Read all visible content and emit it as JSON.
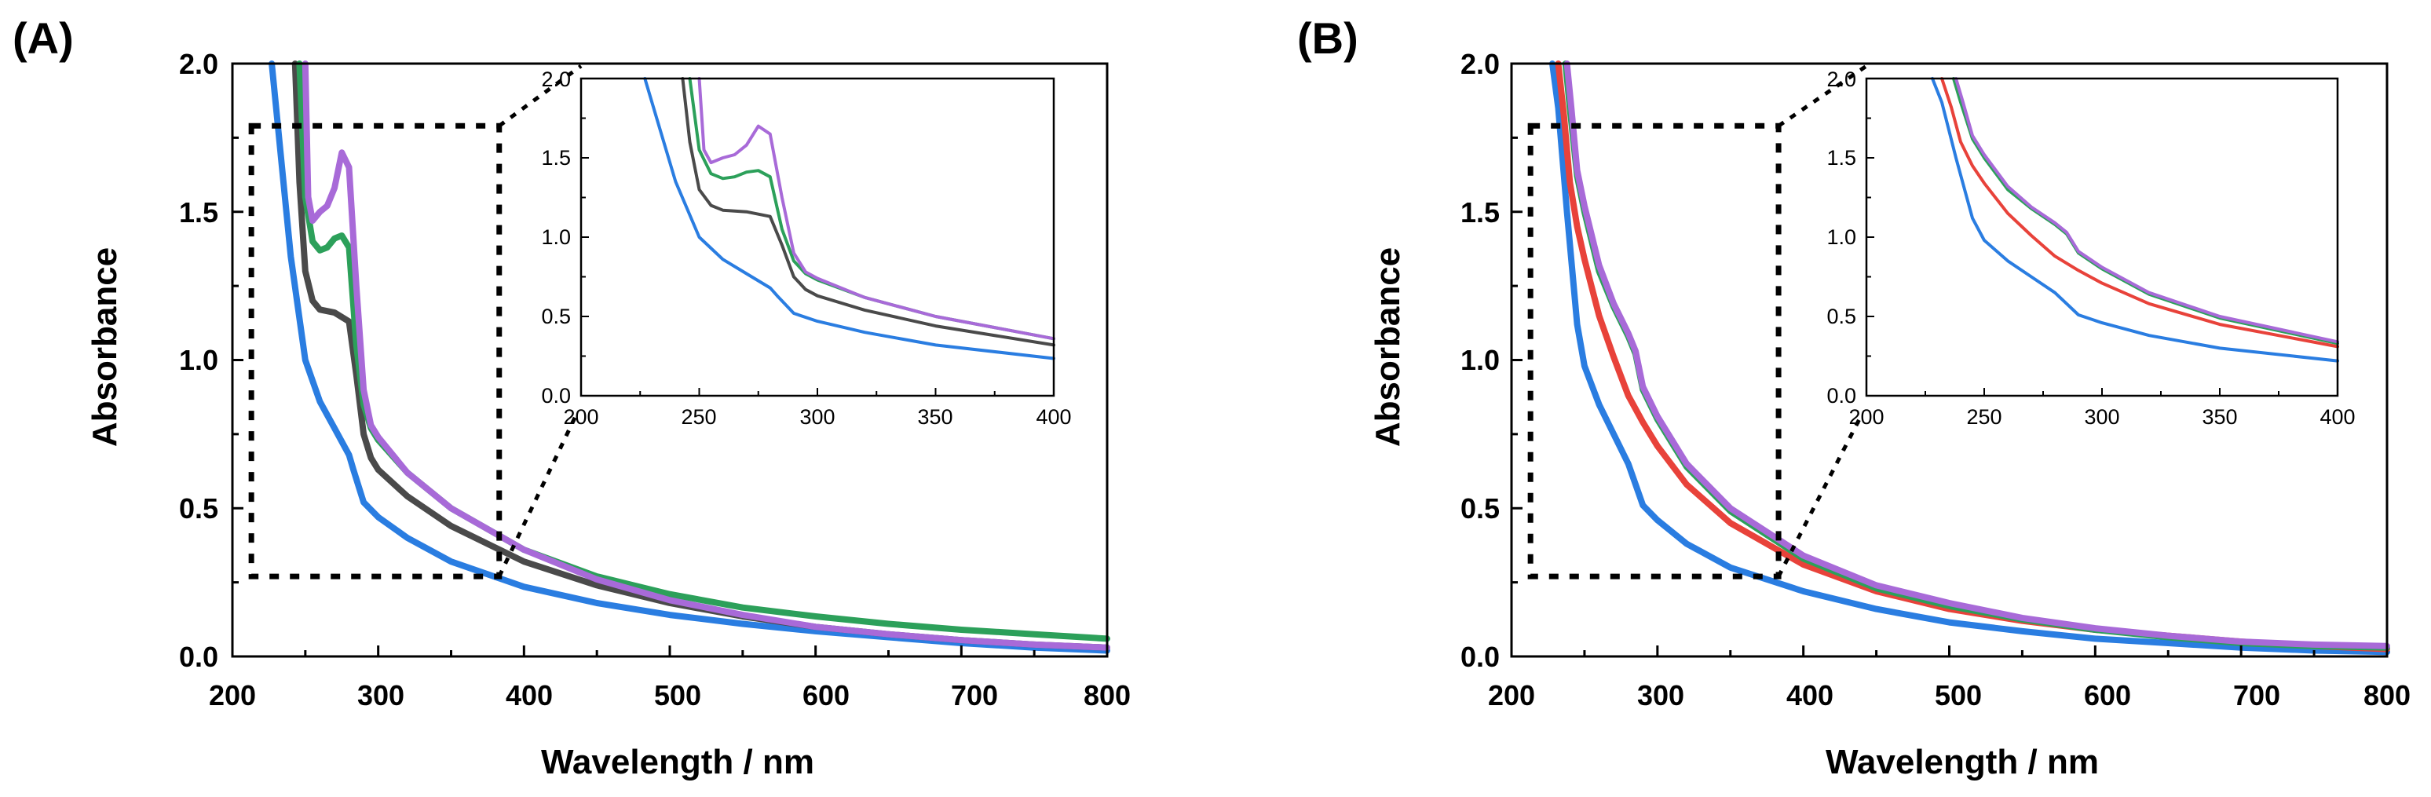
{
  "panels": [
    {
      "label": "(A)",
      "xlabel": "Wavelength / nm",
      "ylabel": "Absorbance",
      "xlim": [
        200,
        800
      ],
      "ylim": [
        0.0,
        2.0
      ],
      "xticks": [
        "200",
        "300",
        "400",
        "500",
        "600",
        "700",
        "800"
      ],
      "yticks": [
        "0.0",
        "0.5",
        "1.0",
        "1.5",
        "2.0"
      ],
      "zoom_box": {
        "x": [
          213,
          383
        ],
        "y": [
          0.27,
          1.79
        ]
      },
      "inset": {
        "xlim": [
          200,
          400
        ],
        "ylim": [
          0.0,
          2.0
        ],
        "xticks": [
          "200",
          "250",
          "300",
          "350",
          "400"
        ],
        "yticks": [
          "0.0",
          "0.5",
          "1.0",
          "1.5",
          "2.0"
        ]
      }
    },
    {
      "label": "(B)",
      "xlabel": "Wavelength / nm",
      "ylabel": "Absorbance",
      "xlim": [
        200,
        800
      ],
      "ylim": [
        0.0,
        2.0
      ],
      "xticks": [
        "200",
        "300",
        "400",
        "500",
        "600",
        "700",
        "800"
      ],
      "yticks": [
        "0.0",
        "0.5",
        "1.0",
        "1.5",
        "2.0"
      ],
      "zoom_box": {
        "x": [
          213,
          383
        ],
        "y": [
          0.27,
          1.79
        ]
      },
      "inset": {
        "xlim": [
          200,
          400
        ],
        "ylim": [
          0.0,
          2.0
        ],
        "xticks": [
          "200",
          "250",
          "300",
          "350",
          "400"
        ],
        "yticks": [
          "0.0",
          "0.5",
          "1.0",
          "1.5",
          "2.0"
        ]
      }
    }
  ],
  "chart_data": [
    {
      "type": "line",
      "panel": "(A)",
      "xlabel": "Wavelength / nm",
      "ylabel": "Absorbance",
      "xlim": [
        200,
        800
      ],
      "ylim": [
        0.0,
        2.0
      ],
      "series": [
        {
          "name": "blue",
          "color": "#2a7de1",
          "x": [
            227,
            232,
            240,
            250,
            260,
            270,
            280,
            283,
            290,
            300,
            320,
            350,
            400,
            450,
            500,
            550,
            600,
            650,
            700,
            750,
            800
          ],
          "y": [
            2.0,
            1.75,
            1.35,
            1.0,
            0.86,
            0.77,
            0.68,
            0.63,
            0.52,
            0.47,
            0.4,
            0.32,
            0.235,
            0.18,
            0.14,
            0.11,
            0.085,
            0.065,
            0.045,
            0.03,
            0.02
          ]
        },
        {
          "name": "gray",
          "color": "#4a4a4a",
          "x": [
            243,
            246,
            250,
            255,
            260,
            270,
            280,
            285,
            290,
            295,
            300,
            320,
            350,
            400,
            450,
            500,
            550,
            600,
            650,
            700,
            750,
            800
          ],
          "y": [
            2.0,
            1.6,
            1.3,
            1.2,
            1.17,
            1.16,
            1.13,
            0.95,
            0.75,
            0.67,
            0.63,
            0.54,
            0.44,
            0.32,
            0.24,
            0.18,
            0.135,
            0.1,
            0.075,
            0.055,
            0.04,
            0.03
          ]
        },
        {
          "name": "green",
          "color": "#2ca05a",
          "x": [
            246,
            250,
            255,
            260,
            265,
            270,
            275,
            280,
            285,
            290,
            295,
            300,
            320,
            350,
            400,
            450,
            500,
            550,
            600,
            650,
            700,
            750,
            800
          ],
          "y": [
            2.0,
            1.55,
            1.4,
            1.37,
            1.38,
            1.41,
            1.42,
            1.38,
            1.05,
            0.85,
            0.77,
            0.73,
            0.62,
            0.5,
            0.36,
            0.27,
            0.21,
            0.165,
            0.135,
            0.11,
            0.09,
            0.075,
            0.06
          ]
        },
        {
          "name": "purple",
          "color": "#a86ad8",
          "x": [
            250,
            252,
            255,
            260,
            265,
            270,
            275,
            280,
            285,
            290,
            295,
            300,
            320,
            350,
            400,
            450,
            500,
            550,
            600,
            650,
            700,
            750,
            800
          ],
          "y": [
            2.0,
            1.55,
            1.47,
            1.5,
            1.52,
            1.58,
            1.7,
            1.65,
            1.25,
            0.9,
            0.78,
            0.74,
            0.62,
            0.5,
            0.36,
            0.26,
            0.19,
            0.14,
            0.1,
            0.075,
            0.055,
            0.04,
            0.03
          ]
        }
      ]
    },
    {
      "type": "line",
      "panel": "(B)",
      "xlabel": "Wavelength / nm",
      "ylabel": "Absorbance",
      "xlim": [
        200,
        800
      ],
      "ylim": [
        0.0,
        2.0
      ],
      "series": [
        {
          "name": "blue",
          "color": "#2a7de1",
          "x": [
            228,
            232,
            238,
            245,
            250,
            260,
            270,
            280,
            285,
            290,
            300,
            320,
            350,
            400,
            450,
            500,
            550,
            600,
            650,
            700,
            750,
            800
          ],
          "y": [
            2.0,
            1.85,
            1.5,
            1.12,
            0.98,
            0.85,
            0.75,
            0.65,
            0.58,
            0.51,
            0.46,
            0.38,
            0.3,
            0.22,
            0.16,
            0.115,
            0.085,
            0.06,
            0.045,
            0.03,
            0.02,
            0.015
          ]
        },
        {
          "name": "red",
          "color": "#e8423a",
          "x": [
            232,
            236,
            240,
            245,
            250,
            260,
            270,
            280,
            290,
            300,
            320,
            350,
            400,
            450,
            500,
            550,
            600,
            650,
            700,
            750,
            800
          ],
          "y": [
            2.0,
            1.82,
            1.6,
            1.45,
            1.34,
            1.15,
            1.01,
            0.88,
            0.79,
            0.71,
            0.58,
            0.45,
            0.31,
            0.22,
            0.16,
            0.12,
            0.09,
            0.07,
            0.05,
            0.035,
            0.025
          ]
        },
        {
          "name": "green",
          "color": "#2ca05a",
          "x": [
            237,
            240,
            245,
            250,
            260,
            270,
            280,
            285,
            290,
            300,
            320,
            350,
            400,
            450,
            500,
            550,
            600,
            650,
            700,
            750,
            800
          ],
          "y": [
            2.0,
            1.85,
            1.62,
            1.5,
            1.3,
            1.18,
            1.08,
            1.02,
            0.9,
            0.8,
            0.64,
            0.49,
            0.33,
            0.23,
            0.17,
            0.125,
            0.09,
            0.065,
            0.045,
            0.035,
            0.03
          ]
        },
        {
          "name": "purple",
          "color": "#a86ad8",
          "x": [
            238,
            241,
            245,
            250,
            260,
            270,
            280,
            285,
            290,
            300,
            320,
            350,
            400,
            450,
            500,
            550,
            600,
            650,
            700,
            750,
            800
          ],
          "y": [
            2.0,
            1.85,
            1.64,
            1.52,
            1.32,
            1.19,
            1.09,
            1.03,
            0.91,
            0.81,
            0.65,
            0.5,
            0.34,
            0.24,
            0.18,
            0.13,
            0.095,
            0.07,
            0.05,
            0.04,
            0.035
          ]
        }
      ]
    }
  ]
}
